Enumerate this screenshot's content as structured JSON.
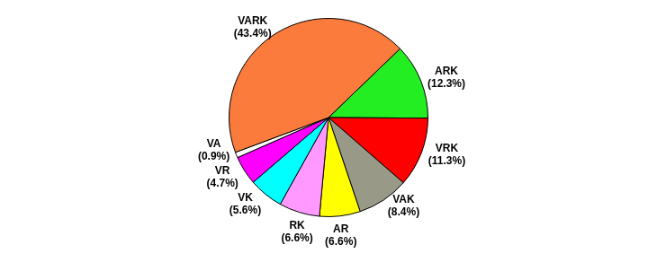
{
  "chart_data": {
    "type": "pie",
    "categories": [
      "ARK",
      "VRK",
      "VAK",
      "AR",
      "RK",
      "VK",
      "VR",
      "VA",
      "VARK"
    ],
    "values": [
      12.3,
      11.3,
      8.4,
      6.6,
      6.6,
      5.6,
      4.7,
      0.9,
      43.4
    ],
    "value_labels": [
      "(12.3%)",
      "(11.3%)",
      "(8.4%)",
      "(6.6%)",
      "(6.6%)",
      "(5.6%)",
      "(4.7%)",
      "(0.9%)",
      "(43.4%)"
    ],
    "colors": [
      "#22ee22",
      "#ff0000",
      "#999988",
      "#ffff00",
      "#ff99ff",
      "#00ffff",
      "#ff00ff",
      "#ffffff",
      "#fa7b3c"
    ],
    "data_labels": true
  }
}
